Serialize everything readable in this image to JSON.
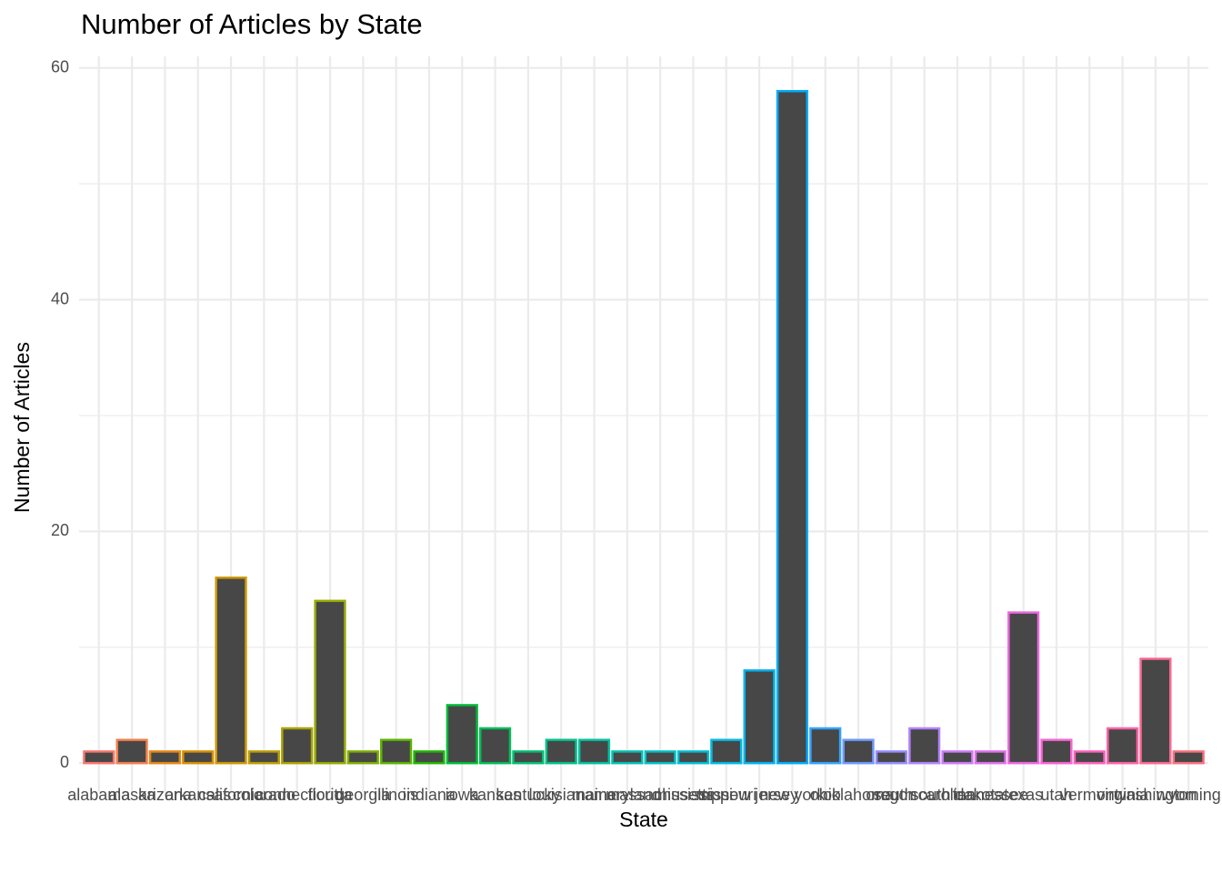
{
  "chart_data": {
    "type": "bar",
    "title": "Number of Articles by State",
    "x_label": "State",
    "y_label": "Number of Articles",
    "categories": [
      "alabama",
      "alaska",
      "arizona",
      "arkansas",
      "california",
      "colorado",
      "connecticut",
      "florida",
      "georgia",
      "illinois",
      "indiana",
      "iowa",
      "kansas",
      "kentucky",
      "louisiana",
      "maine",
      "maryland",
      "massachusetts",
      "mississippi",
      "missouri",
      "new jersey",
      "new york",
      "ohio",
      "oklahoma",
      "oregon",
      "south carolina",
      "south dakota",
      "tennessee",
      "texas",
      "utah",
      "vermont",
      "virginia",
      "washington",
      "wyoming"
    ],
    "values": [
      1,
      2,
      1,
      1,
      16,
      1,
      3,
      14,
      1,
      2,
      1,
      5,
      3,
      1,
      2,
      2,
      1,
      1,
      1,
      2,
      8,
      58,
      3,
      2,
      1,
      3,
      1,
      1,
      13,
      2,
      1,
      3,
      9,
      1
    ],
    "fill": "#474747",
    "colors": [
      "#F8766D",
      "#F07E4C",
      "#E68613",
      "#D98F00",
      "#CB9700",
      "#BB9D00",
      "#A9A300",
      "#94A900",
      "#7CAE00",
      "#5BB300",
      "#1EB600",
      "#00BA38",
      "#00BC59",
      "#00BE73",
      "#00C08A",
      "#00C19F",
      "#00C1B2",
      "#00C0C4",
      "#00BDD4",
      "#00B9E3",
      "#00B3F0",
      "#00ACFB",
      "#35A2FF",
      "#6E97FF",
      "#948CFF",
      "#B382FF",
      "#CC79F9",
      "#DF70EE",
      "#ED68E0",
      "#F763CF",
      "#FC61BC",
      "#FE63A7",
      "#FC6891",
      "#F86F7C"
    ],
    "ylim": [
      -2.5,
      61
    ],
    "yticks": [
      0,
      20,
      40,
      60
    ],
    "grid": true
  }
}
